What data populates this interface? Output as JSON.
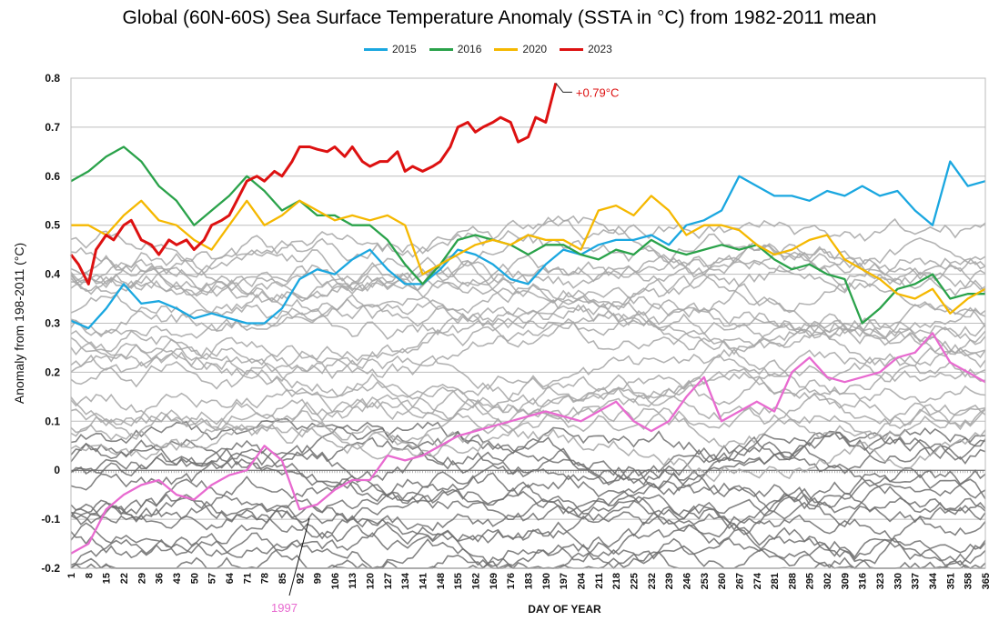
{
  "chart_data": {
    "type": "line",
    "title": "Global (60N-60S) Sea Surface Temperature Anomaly (SSTA in °C) from 1982-2011 mean",
    "xlabel": "DAY OF YEAR",
    "ylabel": "Anomaly from 198-2011 (°C)",
    "xlim": [
      1,
      365
    ],
    "ylim": [
      -0.2,
      0.8
    ],
    "y_ticks": [
      "-0.2",
      "-0.1",
      "0",
      "0.1",
      "0.2",
      "0.3",
      "0.4",
      "0.5",
      "0.6",
      "0.7",
      "0.8"
    ],
    "x_ticks": [
      "1",
      "8",
      "15",
      "22",
      "29",
      "36",
      "43",
      "50",
      "57",
      "64",
      "71",
      "78",
      "85",
      "92",
      "99",
      "106",
      "113",
      "120",
      "127",
      "134",
      "141",
      "148",
      "155",
      "162",
      "169",
      "176",
      "183",
      "190",
      "197",
      "204",
      "211",
      "218",
      "225",
      "232",
      "239",
      "246",
      "253",
      "260",
      "267",
      "274",
      "281",
      "288",
      "295",
      "302",
      "309",
      "316",
      "323",
      "330",
      "337",
      "344",
      "351",
      "358",
      "365"
    ],
    "legend_position": "top-center",
    "series": [
      {
        "name": "2015",
        "color": "#1aa7e0",
        "show_in_legend": true,
        "x": [
          1,
          8,
          15,
          22,
          29,
          36,
          43,
          50,
          57,
          64,
          71,
          78,
          85,
          92,
          99,
          106,
          113,
          120,
          127,
          134,
          141,
          148,
          155,
          162,
          169,
          176,
          183,
          190,
          197,
          204,
          211,
          218,
          225,
          232,
          239,
          246,
          253,
          260,
          267,
          274,
          281,
          288,
          295,
          302,
          309,
          316,
          323,
          330,
          337,
          344,
          351,
          358,
          365
        ],
        "y": [
          0.305,
          0.29,
          0.33,
          0.38,
          0.34,
          0.345,
          0.33,
          0.31,
          0.32,
          0.31,
          0.3,
          0.3,
          0.33,
          0.39,
          0.41,
          0.4,
          0.43,
          0.45,
          0.41,
          0.38,
          0.38,
          0.41,
          0.45,
          0.44,
          0.42,
          0.39,
          0.38,
          0.42,
          0.45,
          0.44,
          0.46,
          0.47,
          0.47,
          0.48,
          0.46,
          0.5,
          0.51,
          0.53,
          0.6,
          0.58,
          0.56,
          0.56,
          0.55,
          0.57,
          0.56,
          0.58,
          0.56,
          0.57,
          0.53,
          0.5,
          0.63,
          0.58,
          0.59
        ]
      },
      {
        "name": "2016",
        "color": "#2aa24a",
        "show_in_legend": true,
        "x": [
          1,
          8,
          15,
          22,
          29,
          36,
          43,
          50,
          57,
          64,
          71,
          78,
          85,
          92,
          99,
          106,
          113,
          120,
          127,
          134,
          141,
          148,
          155,
          162,
          169,
          176,
          183,
          190,
          197,
          204,
          211,
          218,
          225,
          232,
          239,
          246,
          253,
          260,
          267,
          274,
          281,
          288,
          295,
          302,
          309,
          316,
          323,
          330,
          337,
          344,
          351,
          358,
          365
        ],
        "y": [
          0.59,
          0.61,
          0.64,
          0.66,
          0.63,
          0.58,
          0.55,
          0.5,
          0.53,
          0.56,
          0.6,
          0.57,
          0.53,
          0.55,
          0.52,
          0.52,
          0.5,
          0.5,
          0.47,
          0.42,
          0.38,
          0.42,
          0.47,
          0.48,
          0.47,
          0.46,
          0.44,
          0.46,
          0.46,
          0.44,
          0.43,
          0.45,
          0.44,
          0.47,
          0.45,
          0.44,
          0.45,
          0.46,
          0.45,
          0.46,
          0.43,
          0.41,
          0.42,
          0.4,
          0.39,
          0.3,
          0.33,
          0.37,
          0.38,
          0.4,
          0.35,
          0.36,
          0.36
        ]
      },
      {
        "name": "2020",
        "color": "#f5b800",
        "show_in_legend": true,
        "x": [
          1,
          8,
          15,
          22,
          29,
          36,
          43,
          50,
          57,
          64,
          71,
          78,
          85,
          92,
          99,
          106,
          113,
          120,
          127,
          134,
          141,
          148,
          155,
          162,
          169,
          176,
          183,
          190,
          197,
          204,
          211,
          218,
          225,
          232,
          239,
          246,
          253,
          260,
          267,
          274,
          281,
          288,
          295,
          302,
          309,
          316,
          323,
          330,
          337,
          344,
          351,
          358,
          365
        ],
        "y": [
          0.5,
          0.5,
          0.48,
          0.52,
          0.55,
          0.51,
          0.5,
          0.47,
          0.45,
          0.5,
          0.55,
          0.5,
          0.52,
          0.55,
          0.53,
          0.51,
          0.52,
          0.51,
          0.52,
          0.5,
          0.4,
          0.42,
          0.44,
          0.46,
          0.47,
          0.46,
          0.48,
          0.47,
          0.47,
          0.45,
          0.53,
          0.54,
          0.52,
          0.56,
          0.53,
          0.48,
          0.5,
          0.5,
          0.49,
          0.46,
          0.44,
          0.45,
          0.47,
          0.48,
          0.43,
          0.41,
          0.39,
          0.36,
          0.35,
          0.37,
          0.32,
          0.35,
          0.37
        ]
      },
      {
        "name": "2023",
        "color": "#dd1111",
        "show_in_legend": true,
        "x": [
          1,
          4,
          8,
          11,
          15,
          18,
          22,
          25,
          29,
          33,
          36,
          40,
          43,
          47,
          50,
          54,
          57,
          61,
          64,
          68,
          71,
          75,
          78,
          82,
          85,
          89,
          92,
          96,
          99,
          103,
          106,
          110,
          113,
          117,
          120,
          124,
          127,
          131,
          134,
          137,
          141,
          145,
          148,
          152,
          155,
          159,
          162,
          165,
          169,
          172,
          176,
          179,
          183,
          186,
          190,
          193,
          194
        ],
        "y": [
          0.44,
          0.42,
          0.38,
          0.45,
          0.48,
          0.47,
          0.5,
          0.51,
          0.47,
          0.46,
          0.44,
          0.47,
          0.46,
          0.47,
          0.45,
          0.47,
          0.5,
          0.51,
          0.52,
          0.56,
          0.59,
          0.6,
          0.59,
          0.61,
          0.6,
          0.63,
          0.66,
          0.66,
          0.655,
          0.65,
          0.66,
          0.64,
          0.66,
          0.63,
          0.62,
          0.63,
          0.63,
          0.65,
          0.61,
          0.62,
          0.61,
          0.62,
          0.63,
          0.66,
          0.7,
          0.71,
          0.69,
          0.7,
          0.71,
          0.72,
          0.71,
          0.67,
          0.68,
          0.72,
          0.71,
          0.77,
          0.79
        ]
      },
      {
        "name": "1997",
        "color": "#e86ad0",
        "show_in_legend": false,
        "x": [
          1,
          8,
          15,
          22,
          29,
          36,
          43,
          50,
          57,
          64,
          71,
          78,
          85,
          92,
          99,
          106,
          113,
          120,
          127,
          134,
          141,
          148,
          155,
          162,
          169,
          176,
          183,
          190,
          197,
          204,
          211,
          218,
          225,
          232,
          239,
          246,
          253,
          260,
          267,
          274,
          281,
          288,
          295,
          302,
          309,
          316,
          323,
          330,
          337,
          344,
          351,
          358,
          365
        ],
        "y": [
          -0.17,
          -0.15,
          -0.08,
          -0.05,
          -0.03,
          -0.02,
          -0.05,
          -0.06,
          -0.03,
          -0.01,
          0.0,
          0.05,
          0.02,
          -0.08,
          -0.07,
          -0.04,
          -0.02,
          -0.02,
          0.03,
          0.02,
          0.03,
          0.05,
          0.07,
          0.08,
          0.09,
          0.1,
          0.11,
          0.12,
          0.11,
          0.1,
          0.12,
          0.14,
          0.1,
          0.08,
          0.1,
          0.15,
          0.19,
          0.1,
          0.12,
          0.14,
          0.12,
          0.2,
          0.23,
          0.19,
          0.18,
          0.19,
          0.2,
          0.23,
          0.24,
          0.28,
          0.22,
          0.2,
          0.18
        ]
      }
    ]
  },
  "annotations": {
    "peak_label": "+0.79°C",
    "year_label": "1997"
  }
}
